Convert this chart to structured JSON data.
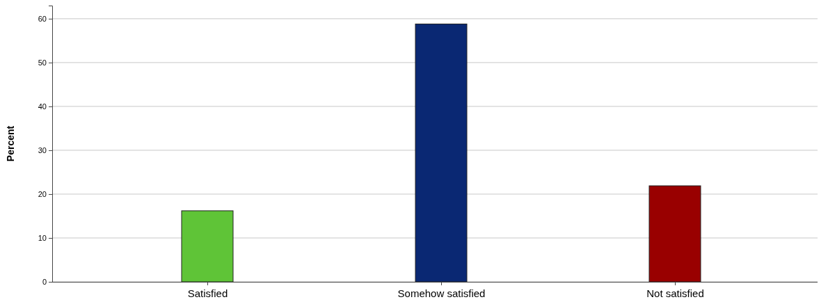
{
  "chart_data": {
    "type": "bar",
    "ylabel": "Percent",
    "categories": [
      "Satisfied",
      "Somehow satisfied",
      "Not satisfied"
    ],
    "values": [
      16.2,
      58.8,
      21.9
    ],
    "colors": [
      "#5fc437",
      "#0a2873",
      "#990000"
    ],
    "ylim": [
      0,
      63
    ],
    "yticks": [
      0,
      10,
      20,
      30,
      40,
      50,
      60
    ],
    "grid": "y"
  }
}
